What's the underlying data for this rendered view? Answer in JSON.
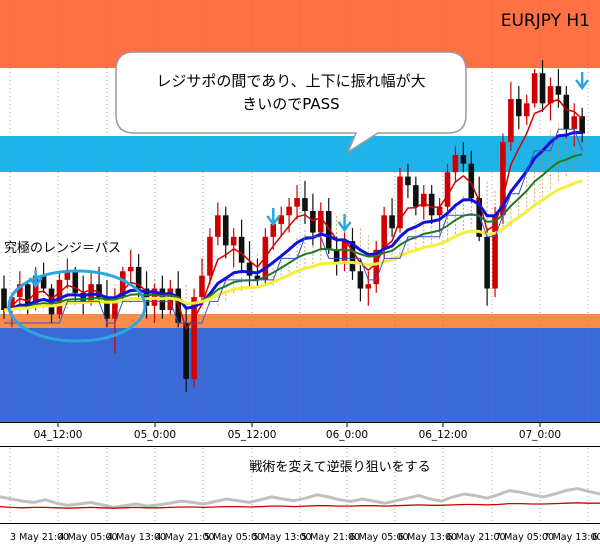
{
  "chart_data": [
    {
      "type": "candlestick",
      "title": "EURJPY H1",
      "x_axis_ticks": [
        "04_12:00",
        "05_0:00",
        "05_12:00",
        "06_0:00",
        "06_12:00",
        "07_0:00"
      ],
      "annotations": {
        "callout": [
          "レジサポの間であり、上下に振れ幅が大",
          "きいのでPASS"
        ],
        "range_label": "究極のレンジ＝パス"
      },
      "zones": [
        {
          "name": "resistance",
          "color": "#ff7043"
        },
        {
          "name": "support-light",
          "color": "#1eb4ea"
        },
        {
          "name": "orange-band",
          "color": "#fb8c4a"
        },
        {
          "name": "support-blue",
          "color": "#3a6ad6"
        }
      ],
      "series_colors": {
        "ma_red": "#d40000",
        "ma_blue": "#1010dd",
        "ma_green": "#207a20",
        "ma_yellow": "#f5ee3a",
        "ma_blue_thin": "#3355cc",
        "ichimoku_cloud": "#c07830",
        "up_candle": "#d00000",
        "down_candle": "#111111",
        "arrow": "#2aa7e0",
        "range_ellipse": "#2aa7e0"
      },
      "candles": [
        [
          106.9,
          107.2,
          106.2,
          106.4
        ],
        [
          106.4,
          106.8,
          106.0,
          106.7
        ],
        [
          106.7,
          107.3,
          106.5,
          107.0
        ],
        [
          107.0,
          107.1,
          106.3,
          106.5
        ],
        [
          106.5,
          107.4,
          106.4,
          107.2
        ],
        [
          107.2,
          107.5,
          106.8,
          106.9
        ],
        [
          106.9,
          107.0,
          106.1,
          106.3
        ],
        [
          106.3,
          107.3,
          106.2,
          107.1
        ],
        [
          107.1,
          107.6,
          106.9,
          107.3
        ],
        [
          107.3,
          107.4,
          106.6,
          106.8
        ],
        [
          106.8,
          107.2,
          106.3,
          106.6
        ],
        [
          106.6,
          107.3,
          106.5,
          107.0
        ],
        [
          107.0,
          107.4,
          106.6,
          106.7
        ],
        [
          106.7,
          107.1,
          106.0,
          106.2
        ],
        [
          106.2,
          106.9,
          105.4,
          106.7
        ],
        [
          106.7,
          107.4,
          106.6,
          107.3
        ],
        [
          107.3,
          107.8,
          107.0,
          107.4
        ],
        [
          107.4,
          107.7,
          106.7,
          106.9
        ],
        [
          106.9,
          107.3,
          106.2,
          106.5
        ],
        [
          106.5,
          107.0,
          106.1,
          106.9
        ],
        [
          106.9,
          107.2,
          106.2,
          106.4
        ],
        [
          106.4,
          107.1,
          106.3,
          106.9
        ],
        [
          106.9,
          107.3,
          106.0,
          106.1
        ],
        [
          106.1,
          106.5,
          104.5,
          104.8
        ],
        [
          104.8,
          106.9,
          104.6,
          106.7
        ],
        [
          106.7,
          107.6,
          106.5,
          107.2
        ],
        [
          107.2,
          108.3,
          107.0,
          108.1
        ],
        [
          108.1,
          108.9,
          107.9,
          108.6
        ],
        [
          108.6,
          108.8,
          107.6,
          107.9
        ],
        [
          107.9,
          108.3,
          107.4,
          108.1
        ],
        [
          108.1,
          108.5,
          107.3,
          107.5
        ],
        [
          107.5,
          108.0,
          106.9,
          107.2
        ],
        [
          107.2,
          107.6,
          106.9,
          107.1
        ],
        [
          107.1,
          108.3,
          107.0,
          108.1
        ],
        [
          108.1,
          108.6,
          107.8,
          108.4
        ],
        [
          108.4,
          108.8,
          108.1,
          108.6
        ],
        [
          108.6,
          109.0,
          108.2,
          108.8
        ],
        [
          108.8,
          109.3,
          108.5,
          109.0
        ],
        [
          109.0,
          109.4,
          108.4,
          108.7
        ],
        [
          108.7,
          109.1,
          107.9,
          108.2
        ],
        [
          108.2,
          108.9,
          107.8,
          108.7
        ],
        [
          108.7,
          109.0,
          107.7,
          107.8
        ],
        [
          107.8,
          108.1,
          107.2,
          107.5
        ],
        [
          107.5,
          108.2,
          107.3,
          108.0
        ],
        [
          108.0,
          108.3,
          107.1,
          107.3
        ],
        [
          107.3,
          107.6,
          106.6,
          106.9
        ],
        [
          106.9,
          107.3,
          106.5,
          107.0
        ],
        [
          107.0,
          108.0,
          106.8,
          107.8
        ],
        [
          107.8,
          108.8,
          107.6,
          108.6
        ],
        [
          108.6,
          109.0,
          108.1,
          108.3
        ],
        [
          108.3,
          109.7,
          108.2,
          109.5
        ],
        [
          109.5,
          109.8,
          109.0,
          109.3
        ],
        [
          109.3,
          109.5,
          108.6,
          108.8
        ],
        [
          108.8,
          109.3,
          108.5,
          109.1
        ],
        [
          109.1,
          109.3,
          108.4,
          108.6
        ],
        [
          108.6,
          109.0,
          108.2,
          108.8
        ],
        [
          108.8,
          109.8,
          108.7,
          109.6
        ],
        [
          109.6,
          110.2,
          109.4,
          110.0
        ],
        [
          110.0,
          110.3,
          109.6,
          109.8
        ],
        [
          109.8,
          110.1,
          108.9,
          109.0
        ],
        [
          109.0,
          109.5,
          108.0,
          108.1
        ],
        [
          108.1,
          108.3,
          106.5,
          106.9
        ],
        [
          106.9,
          108.8,
          106.7,
          108.6
        ],
        [
          108.6,
          110.5,
          108.4,
          110.3
        ],
        [
          110.3,
          111.7,
          110.1,
          111.3
        ],
        [
          111.3,
          111.6,
          110.6,
          110.9
        ],
        [
          110.9,
          111.4,
          110.7,
          111.2
        ],
        [
          111.2,
          112.0,
          111.1,
          111.9
        ],
        [
          111.9,
          112.2,
          111.0,
          111.2
        ],
        [
          111.2,
          111.8,
          110.8,
          111.6
        ],
        [
          111.6,
          112.0,
          111.1,
          111.4
        ],
        [
          111.4,
          111.6,
          110.4,
          110.6
        ],
        [
          110.6,
          111.2,
          110.2,
          110.9
        ],
        [
          110.9,
          111.1,
          110.3,
          110.5
        ]
      ]
    },
    {
      "type": "line",
      "label": "戦術を変えて逆張り狙いをする",
      "x_axis_ticks": [
        "3 May 21:00",
        "4 May 05:00",
        "4 May 13:00",
        "4 May 21:00",
        "5 May 05:00",
        "5 May 13:00",
        "5 May 21:00",
        "6 May 05:00",
        "6 May 13:00",
        "6 May 21:00",
        "7 May 05:00",
        "7 May 13:00",
        "6 M"
      ],
      "series": [
        {
          "color": "#c0c0c0",
          "values": [
            0.55,
            0.5,
            0.45,
            0.42,
            0.48,
            0.4,
            0.35,
            0.38,
            0.42,
            0.36,
            0.3,
            0.34,
            0.38,
            0.33,
            0.36,
            0.4,
            0.45,
            0.42,
            0.38,
            0.44,
            0.5,
            0.46,
            0.42,
            0.48,
            0.55,
            0.5,
            0.46,
            0.52,
            0.6,
            0.55,
            0.48,
            0.44,
            0.5,
            0.45,
            0.4,
            0.46,
            0.52,
            0.58,
            0.5,
            0.45,
            0.55,
            0.62,
            0.58,
            0.52,
            0.6,
            0.7,
            0.66,
            0.6,
            0.55,
            0.62,
            0.7,
            0.75,
            0.68,
            0.62
          ]
        },
        {
          "color": "#cc0000",
          "values": [
            0.32,
            0.3,
            0.29,
            0.3,
            0.3,
            0.29,
            0.28,
            0.29,
            0.3,
            0.29,
            0.28,
            0.29,
            0.3,
            0.29,
            0.29,
            0.3,
            0.31,
            0.31,
            0.3,
            0.31,
            0.32,
            0.32,
            0.31,
            0.32,
            0.33,
            0.33,
            0.32,
            0.33,
            0.34,
            0.34,
            0.33,
            0.33,
            0.34,
            0.34,
            0.33,
            0.34,
            0.35,
            0.36,
            0.35,
            0.35,
            0.36,
            0.37,
            0.37,
            0.36,
            0.37,
            0.39,
            0.39,
            0.38,
            0.38,
            0.39,
            0.4,
            0.41,
            0.4,
            0.4
          ]
        }
      ]
    }
  ]
}
